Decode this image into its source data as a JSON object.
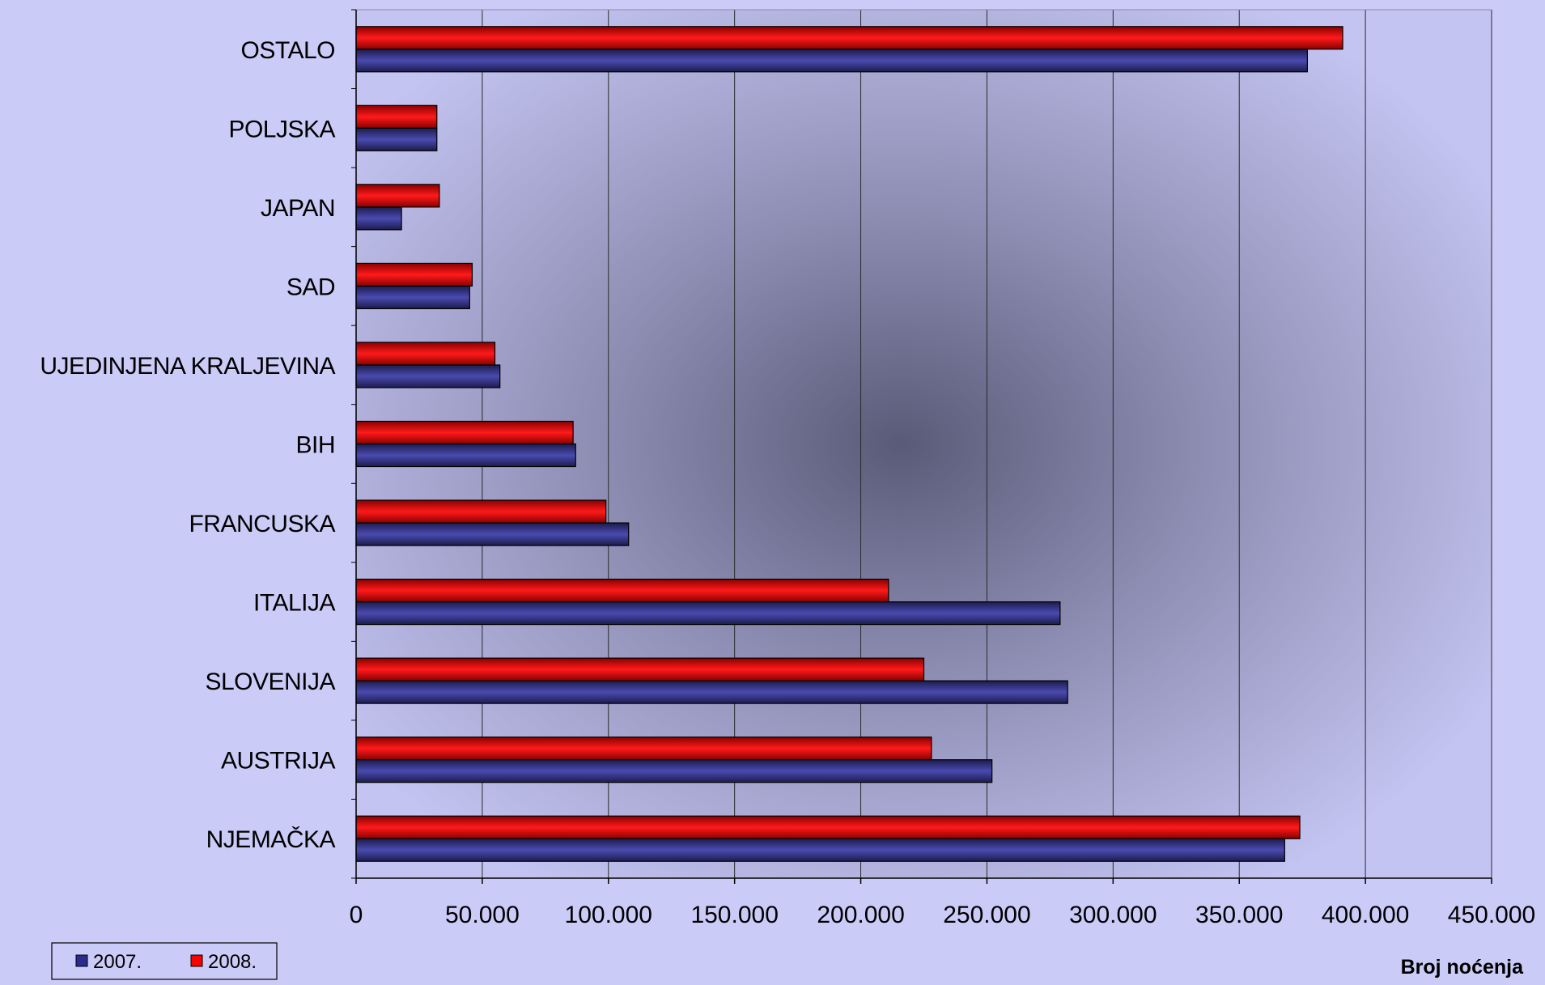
{
  "chart_data": {
    "type": "bar",
    "orientation": "horizontal",
    "categories": [
      "OSTALO",
      "POLJSKA",
      "JAPAN",
      "SAD",
      "UJEDINJENA KRALJEVINA",
      "BIH",
      "FRANCUSKA",
      "ITALIJA",
      "SLOVENIJA",
      "AUSTRIJA",
      "NJEMAČKA"
    ],
    "series": [
      {
        "name": "2008.",
        "color": "#ff0000",
        "values": [
          391000,
          32000,
          33000,
          46000,
          55000,
          86000,
          99000,
          211000,
          225000,
          228000,
          374000
        ]
      },
      {
        "name": "2007.",
        "color": "#2b2b8f",
        "values": [
          377000,
          32000,
          18000,
          45000,
          57000,
          87000,
          108000,
          279000,
          282000,
          252000,
          368000
        ]
      }
    ],
    "xlim": [
      0,
      450000
    ],
    "x_ticks": [
      0,
      50000,
      100000,
      150000,
      200000,
      250000,
      300000,
      350000,
      400000,
      450000
    ],
    "x_tick_labels": [
      "0",
      "50.000",
      "100.000",
      "150.000",
      "200.000",
      "250.000",
      "300.000",
      "350.000",
      "400.000",
      "450.000"
    ],
    "xlabel": "Broj noćenja",
    "ylabel": "",
    "title": "",
    "grid": true,
    "legend_position": "bottom-left",
    "legend": [
      {
        "label": "2007.",
        "color": "#2b2b8f"
      },
      {
        "label": "2008.",
        "color": "#ff0000"
      }
    ]
  }
}
